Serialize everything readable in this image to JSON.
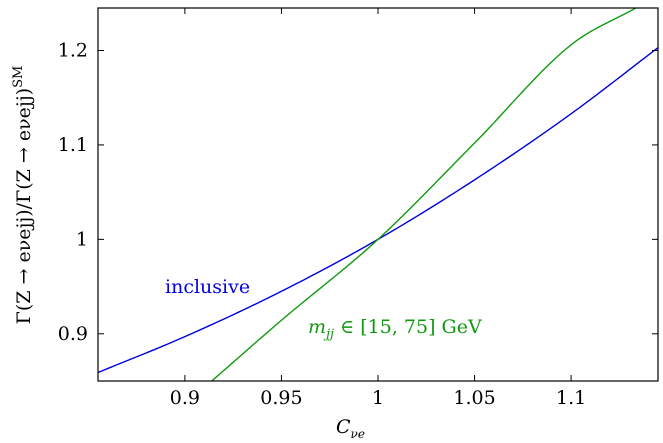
{
  "chart_data": {
    "type": "line",
    "xlabel": "C",
    "xlabel_sub": "νe",
    "ylabel": "Γ(Z → eνejj)/Γ(Z → eνejj)",
    "ylabel_sup": "SM",
    "xlim": [
      0.855,
      1.145
    ],
    "ylim": [
      0.85,
      1.245
    ],
    "xticks": [
      0.9,
      0.95,
      1,
      1.05,
      1.1
    ],
    "xtick_labels": [
      "0.9",
      "0.95",
      "1",
      "1.05",
      "1.1"
    ],
    "yticks": [
      0.9,
      1.0,
      1.1,
      1.2
    ],
    "ytick_labels": [
      "0.9",
      "1",
      "1.1",
      "1.2"
    ],
    "grid": false,
    "series": [
      {
        "name": "inclusive",
        "color": "#0000dd",
        "x": [
          0.855,
          0.9,
          0.95,
          1.0,
          1.05,
          1.1,
          1.145
        ],
        "y": [
          0.859,
          0.897,
          0.945,
          1.0,
          1.063,
          1.133,
          1.203
        ]
      },
      {
        "name": "m_jj ∈ [15, 75] GeV",
        "color": "#119911",
        "x": [
          0.9139,
          0.95,
          1.0,
          1.05,
          1.1,
          1.1335
        ],
        "y": [
          0.85,
          0.9143,
          1.0,
          1.102,
          1.206,
          1.245
        ]
      }
    ],
    "annotations": [
      {
        "text": "inclusive",
        "color": "#0000dd"
      },
      {
        "text_math": "m",
        "text_sub": "jj",
        "text": " ∈ [15, 75] GeV",
        "color": "#119911"
      }
    ]
  }
}
